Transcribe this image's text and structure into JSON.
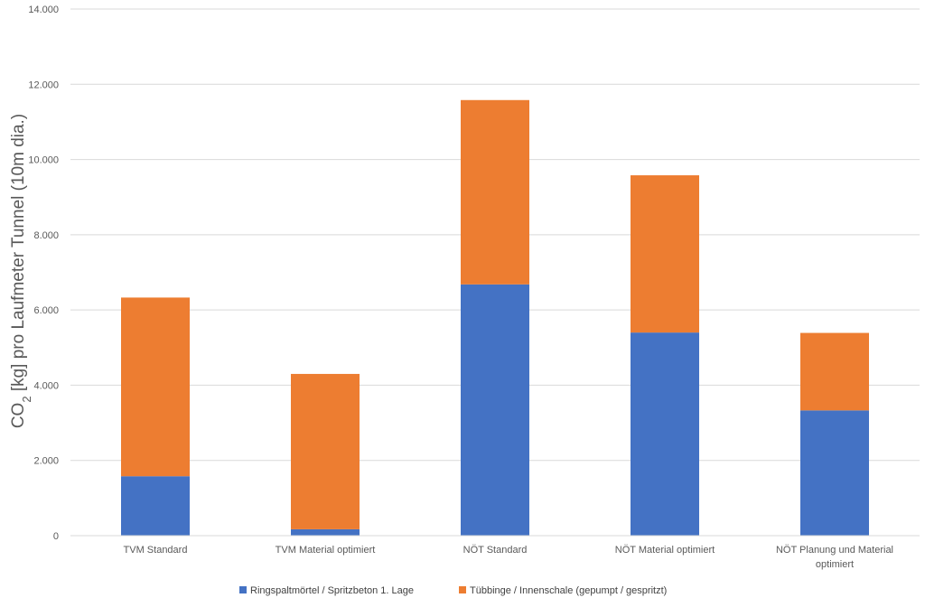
{
  "chart_data": {
    "type": "bar",
    "stacked": true,
    "categories": [
      [
        "TVM Standard"
      ],
      [
        "TVM Material optimiert"
      ],
      [
        "NÖT Standard"
      ],
      [
        "NÖT Material optimiert"
      ],
      [
        "NÖT Planung und Material",
        "optimiert"
      ]
    ],
    "series": [
      {
        "name": "Ringspaltmörtel / Spritzbeton 1. Lage",
        "color": "#4472C4",
        "values": [
          1580,
          170,
          6680,
          5400,
          3330
        ]
      },
      {
        "name": "Tübbinge / Innenschale (gepumpt / gespritzt)",
        "color": "#ED7D31",
        "values": [
          4750,
          4130,
          4900,
          4180,
          2060
        ]
      }
    ],
    "ylabel": {
      "main": "CO",
      "sub": "2",
      "rest": " [kg] pro Laufmeter Tunnel (10m dia.)"
    },
    "yticks": [
      "0",
      "2.000",
      "4.000",
      "6.000",
      "8.000",
      "10.000",
      "12.000",
      "14.000"
    ],
    "ylim": [
      0,
      14000
    ],
    "grid": true,
    "legend_position": "bottom"
  }
}
